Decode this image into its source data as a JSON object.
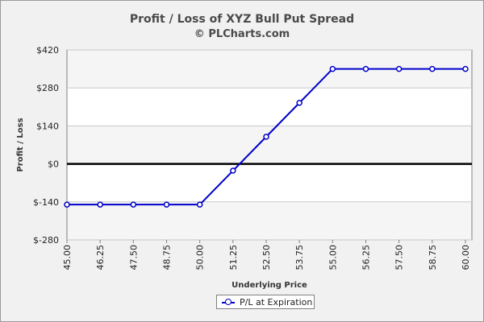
{
  "chart_data": {
    "type": "line",
    "title": "Profit / Loss of XYZ Bull Put Spread",
    "subtitle": "© PLCharts.com",
    "xlabel": "Underlying Price",
    "ylabel": "Profit / Loss",
    "x": [
      "45.00",
      "46.25",
      "47.50",
      "48.75",
      "50.00",
      "51.25",
      "52.50",
      "53.75",
      "55.00",
      "56.25",
      "57.50",
      "58.75",
      "60.00"
    ],
    "series": [
      {
        "name": "P/L at Expiration",
        "values": [
          -150,
          -150,
          -150,
          -150,
          -150,
          -25,
          100,
          225,
          350,
          350,
          350,
          350,
          350
        ]
      }
    ],
    "yticks": [
      "$420",
      "$280",
      "$140",
      "$0",
      "$-140",
      "$-280"
    ],
    "ytick_values": [
      420,
      280,
      140,
      0,
      -140,
      -280
    ],
    "ylim": [
      -280,
      420
    ],
    "zero_line": true,
    "legend_position": "bottom-center",
    "series_color": "#0000cc"
  }
}
